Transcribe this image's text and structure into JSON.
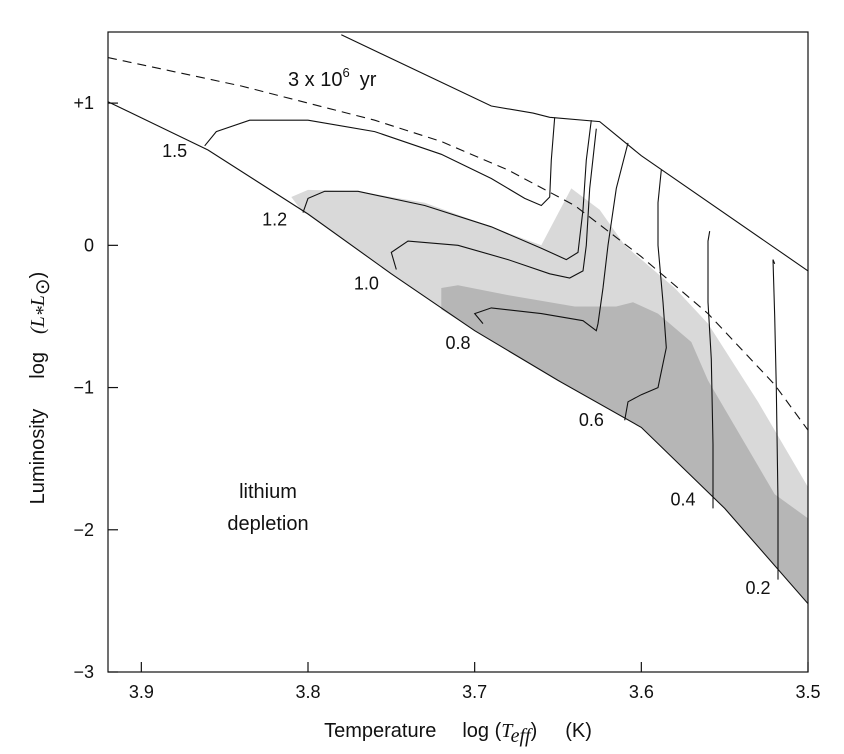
{
  "chart_data": {
    "type": "line",
    "xlabel": {
      "prefix": "Temperature",
      "func": "log (",
      "var": "T",
      "sub": "eff",
      "close": ")",
      "unit": "(K)"
    },
    "ylabel": {
      "prefix": "Luminosity",
      "func": "log",
      "var": "(L",
      "sub1": "*",
      "var2": "L",
      "sub2": "⊙",
      "close": ")"
    },
    "xlim": [
      3.92,
      3.5
    ],
    "ylim": [
      -3,
      1.5
    ],
    "x_reversed": true,
    "x_ticks": [
      3.9,
      3.8,
      3.7,
      3.6,
      3.5
    ],
    "x_tick_labels": [
      "3.9",
      "3.8",
      "3.7",
      "3.6",
      "3.5"
    ],
    "y_ticks": [
      1,
      0,
      -1,
      -2,
      -3
    ],
    "y_tick_labels": [
      "+1",
      "0",
      "−1",
      "−2",
      "−3"
    ],
    "isochrone": {
      "label": "3 x 10",
      "label_sup": "6",
      "label_unit": "yr",
      "style": "dashed",
      "points": [
        [
          3.92,
          1.32
        ],
        [
          3.88,
          1.22
        ],
        [
          3.84,
          1.12
        ],
        [
          3.8,
          1.0
        ],
        [
          3.76,
          0.88
        ],
        [
          3.72,
          0.73
        ],
        [
          3.68,
          0.53
        ],
        [
          3.64,
          0.28
        ],
        [
          3.6,
          -0.08
        ],
        [
          3.56,
          -0.48
        ],
        [
          3.52,
          -0.98
        ],
        [
          3.5,
          -1.3
        ]
      ]
    },
    "zams": {
      "points": [
        [
          3.92,
          1.01
        ],
        [
          3.86,
          0.67
        ],
        [
          3.8,
          0.22
        ],
        [
          3.75,
          -0.2
        ],
        [
          3.7,
          -0.6
        ],
        [
          3.65,
          -0.95
        ],
        [
          3.6,
          -1.28
        ],
        [
          3.55,
          -1.85
        ],
        [
          3.5,
          -2.52
        ]
      ]
    },
    "upper_envelope": {
      "points": [
        [
          3.78,
          1.48
        ],
        [
          3.69,
          0.98
        ],
        [
          3.665,
          0.93
        ],
        [
          3.655,
          0.9
        ],
        [
          3.625,
          0.87
        ],
        [
          3.6,
          0.63
        ],
        [
          3.5,
          -0.18
        ]
      ]
    },
    "tracks": [
      {
        "mass": "1.5",
        "points": [
          [
            3.862,
            0.7
          ],
          [
            3.855,
            0.8
          ],
          [
            3.835,
            0.88
          ],
          [
            3.8,
            0.88
          ],
          [
            3.76,
            0.8
          ],
          [
            3.72,
            0.64
          ],
          [
            3.69,
            0.47
          ],
          [
            3.67,
            0.33
          ],
          [
            3.66,
            0.28
          ],
          [
            3.655,
            0.34
          ],
          [
            3.654,
            0.6
          ],
          [
            3.652,
            0.9
          ]
        ]
      },
      {
        "mass": "1.2",
        "points": [
          [
            3.803,
            0.23
          ],
          [
            3.8,
            0.33
          ],
          [
            3.79,
            0.38
          ],
          [
            3.77,
            0.38
          ],
          [
            3.73,
            0.28
          ],
          [
            3.69,
            0.13
          ],
          [
            3.66,
            -0.02
          ],
          [
            3.645,
            -0.1
          ],
          [
            3.638,
            -0.05
          ],
          [
            3.635,
            0.25
          ],
          [
            3.633,
            0.6
          ],
          [
            3.63,
            0.88
          ]
        ]
      },
      {
        "mass": "1.0",
        "points": [
          [
            3.747,
            -0.17
          ],
          [
            3.75,
            -0.05
          ],
          [
            3.74,
            0.03
          ],
          [
            3.71,
            0.0
          ],
          [
            3.68,
            -0.1
          ],
          [
            3.655,
            -0.2
          ],
          [
            3.643,
            -0.23
          ],
          [
            3.635,
            -0.18
          ],
          [
            3.633,
            0.0
          ],
          [
            3.631,
            0.4
          ],
          [
            3.627,
            0.82
          ]
        ]
      },
      {
        "mass": "0.8",
        "points": [
          [
            3.695,
            -0.55
          ],
          [
            3.7,
            -0.48
          ],
          [
            3.69,
            -0.44
          ],
          [
            3.66,
            -0.48
          ],
          [
            3.635,
            -0.53
          ],
          [
            3.627,
            -0.6
          ],
          [
            3.626,
            -0.55
          ],
          [
            3.623,
            -0.3
          ],
          [
            3.62,
            0.0
          ],
          [
            3.615,
            0.4
          ],
          [
            3.608,
            0.72
          ]
        ]
      },
      {
        "mass": "0.6",
        "points": [
          [
            3.61,
            -1.23
          ],
          [
            3.608,
            -1.1
          ],
          [
            3.6,
            -1.05
          ],
          [
            3.59,
            -1.0
          ],
          [
            3.585,
            -0.72
          ],
          [
            3.587,
            -0.4
          ],
          [
            3.59,
            0.0
          ],
          [
            3.59,
            0.3
          ],
          [
            3.588,
            0.53
          ]
        ]
      },
      {
        "mass": "0.4",
        "points": [
          [
            3.557,
            -1.85
          ],
          [
            3.557,
            -1.4
          ],
          [
            3.558,
            -0.8
          ],
          [
            3.56,
            -0.4
          ],
          [
            3.56,
            -0.1
          ],
          [
            3.56,
            0.03
          ],
          [
            3.559,
            0.1
          ]
        ]
      },
      {
        "mass": "0.2",
        "points": [
          [
            3.518,
            -2.35
          ],
          [
            3.518,
            -1.8
          ],
          [
            3.519,
            -1.0
          ],
          [
            3.52,
            -0.5
          ],
          [
            3.521,
            -0.1
          ],
          [
            3.52,
            -0.13
          ]
        ]
      }
    ],
    "mass_labels": [
      {
        "text": "1.5",
        "x": 3.88,
        "y": 0.62
      },
      {
        "text": "1.2",
        "x": 3.82,
        "y": 0.14
      },
      {
        "text": "1.0",
        "x": 3.765,
        "y": -0.31
      },
      {
        "text": "0.8",
        "x": 3.71,
        "y": -0.73
      },
      {
        "text": "0.6",
        "x": 3.63,
        "y": -1.27
      },
      {
        "text": "0.4",
        "x": 3.575,
        "y": -1.83
      },
      {
        "text": "0.2",
        "x": 3.53,
        "y": -2.45
      }
    ],
    "region_light": {
      "label": "lithium depletion",
      "points": [
        [
          3.81,
          0.34
        ],
        [
          3.8,
          0.39
        ],
        [
          3.77,
          0.38
        ],
        [
          3.73,
          0.3
        ],
        [
          3.69,
          0.13
        ],
        [
          3.66,
          0.0
        ],
        [
          3.642,
          0.4
        ],
        [
          3.625,
          0.25
        ],
        [
          3.61,
          0.0
        ],
        [
          3.58,
          -0.3
        ],
        [
          3.56,
          -0.55
        ],
        [
          3.53,
          -1.1
        ],
        [
          3.5,
          -1.7
        ],
        [
          3.5,
          -2.52
        ],
        [
          3.55,
          -1.85
        ],
        [
          3.6,
          -1.28
        ],
        [
          3.65,
          -0.95
        ],
        [
          3.7,
          -0.6
        ],
        [
          3.75,
          -0.2
        ],
        [
          3.8,
          0.22
        ],
        [
          3.803,
          0.23
        ]
      ]
    },
    "region_dark": {
      "points": [
        [
          3.72,
          -0.3
        ],
        [
          3.71,
          -0.28
        ],
        [
          3.68,
          -0.35
        ],
        [
          3.64,
          -0.43
        ],
        [
          3.615,
          -0.43
        ],
        [
          3.605,
          -0.4
        ],
        [
          3.59,
          -0.48
        ],
        [
          3.57,
          -0.68
        ],
        [
          3.56,
          -0.95
        ],
        [
          3.54,
          -1.35
        ],
        [
          3.52,
          -1.75
        ],
        [
          3.5,
          -1.92
        ],
        [
          3.5,
          -2.52
        ],
        [
          3.55,
          -1.85
        ],
        [
          3.6,
          -1.28
        ],
        [
          3.65,
          -0.95
        ],
        [
          3.7,
          -0.6
        ],
        [
          3.72,
          -0.45
        ]
      ]
    },
    "colors": {
      "light_region": "#d9d9d9",
      "dark_region": "#b6b6b6",
      "lines": "#111111"
    },
    "annotations": {
      "lithium_line1": "lithium",
      "lithium_line2": "depletion"
    },
    "grid": false
  }
}
